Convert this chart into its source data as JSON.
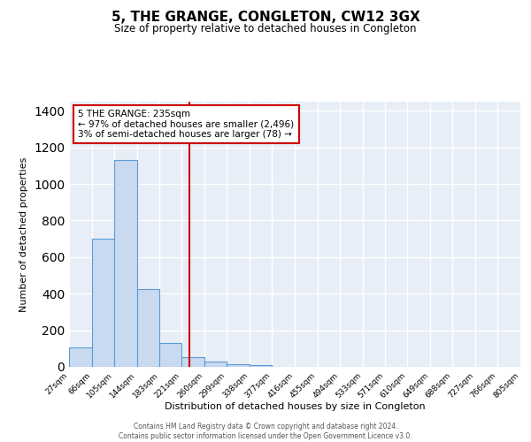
{
  "title": "5, THE GRANGE, CONGLETON, CW12 3GX",
  "subtitle": "Size of property relative to detached houses in Congleton",
  "xlabel": "Distribution of detached houses by size in Congleton",
  "ylabel": "Number of detached properties",
  "bin_edges": [
    27,
    66,
    105,
    144,
    183,
    221,
    260,
    299,
    338,
    377,
    416,
    455,
    494,
    533,
    571,
    610,
    649,
    688,
    727,
    766,
    805
  ],
  "bar_heights": [
    105,
    700,
    1130,
    425,
    130,
    55,
    30,
    15,
    10,
    0,
    0,
    0,
    0,
    0,
    0,
    0,
    0,
    0,
    0,
    0
  ],
  "bar_color": "#c9d9f0",
  "bar_edgecolor": "#5b9bd5",
  "vline_x": 235,
  "vline_color": "#cc0000",
  "annotation_line1": "5 THE GRANGE: 235sqm",
  "annotation_line2": "← 97% of detached houses are smaller (2,496)",
  "annotation_line3": "3% of semi-detached houses are larger (78) →",
  "annotation_box_color": "#ffffff",
  "annotation_box_edgecolor": "#cc0000",
  "ylim": [
    0,
    1450
  ],
  "yticks": [
    0,
    200,
    400,
    600,
    800,
    1000,
    1200,
    1400
  ],
  "bg_color": "#e8eef7",
  "grid_color": "#ffffff",
  "footer_line1": "Contains HM Land Registry data © Crown copyright and database right 2024.",
  "footer_line2": "Contains public sector information licensed under the Open Government Licence v3.0."
}
